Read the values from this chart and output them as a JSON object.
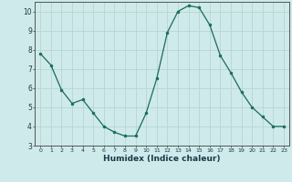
{
  "x": [
    0,
    1,
    2,
    3,
    4,
    5,
    6,
    7,
    8,
    9,
    10,
    11,
    12,
    13,
    14,
    15,
    16,
    17,
    18,
    19,
    20,
    21,
    22,
    23
  ],
  "y": [
    7.8,
    7.2,
    5.9,
    5.2,
    5.4,
    4.7,
    4.0,
    3.7,
    3.5,
    3.5,
    4.7,
    6.5,
    8.9,
    10.0,
    10.3,
    10.2,
    9.3,
    7.7,
    6.8,
    5.8,
    5.0,
    4.5,
    4.0,
    4.0
  ],
  "xlabel": "Humidex (Indice chaleur)",
  "ylim": [
    3,
    10.5
  ],
  "yticks": [
    3,
    4,
    5,
    6,
    7,
    8,
    9,
    10
  ],
  "xticks": [
    0,
    1,
    2,
    3,
    4,
    5,
    6,
    7,
    8,
    9,
    10,
    11,
    12,
    13,
    14,
    15,
    16,
    17,
    18,
    19,
    20,
    21,
    22,
    23
  ],
  "line_color": "#1a6b5a",
  "marker": "o",
  "marker_size": 2.0,
  "bg_color": "#ceeaea",
  "grid_color": "#b8d4d4",
  "axis_color": "#555555",
  "tick_label_color": "#1a3a4a",
  "xlabel_color": "#1a3a4a"
}
